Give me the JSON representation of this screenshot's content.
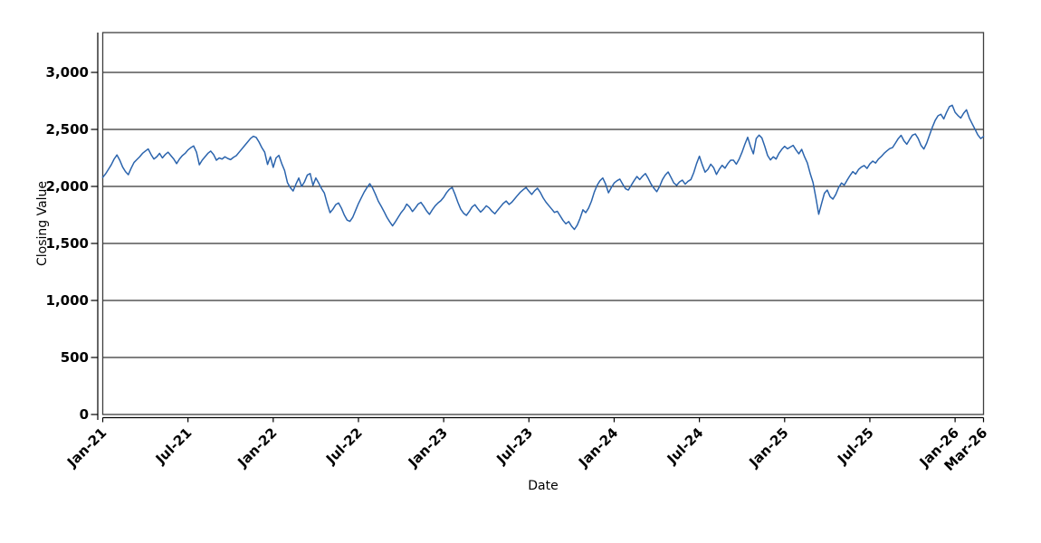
{
  "chart_data": {
    "type": "line",
    "title": "",
    "xlabel": "Date",
    "ylabel": "Closing Value",
    "grid": "horizontal-only",
    "legend": "none",
    "line_color": "#2b64ad",
    "axis_color": "#000000",
    "border_color": "#3f3f3f",
    "y_axis": {
      "ticks": [
        0,
        500,
        1000,
        1500,
        2000,
        2500,
        3000
      ],
      "tick_labels": [
        "0",
        "500",
        "1,000",
        "1,500",
        "2,000",
        "2,500",
        "3,000"
      ],
      "range": [
        0,
        3350
      ]
    },
    "x_axis": {
      "months_total": 62,
      "ticks": [
        {
          "label": "Jan-21",
          "month": 0
        },
        {
          "label": "Jul-21",
          "month": 6
        },
        {
          "label": "Jan-22",
          "month": 12
        },
        {
          "label": "Jul-22",
          "month": 18
        },
        {
          "label": "Jan-23",
          "month": 24
        },
        {
          "label": "Jul-23",
          "month": 30
        },
        {
          "label": "Jan-24",
          "month": 36
        },
        {
          "label": "Jul-24",
          "month": 42
        },
        {
          "label": "Jan-25",
          "month": 48
        },
        {
          "label": "Jul-25",
          "month": 54
        },
        {
          "label": "Jan-26",
          "month": 60
        },
        {
          "label": "Mar-26",
          "month": 62
        }
      ]
    },
    "series": [
      {
        "name": "Closing Value",
        "color": "#2b64ad",
        "x_start_month": 0,
        "x_step_month": 0.2,
        "x_unit": "months since Jan-2021",
        "values": [
          2080,
          2110,
          2150,
          2190,
          2240,
          2276,
          2230,
          2170,
          2130,
          2103,
          2160,
          2210,
          2235,
          2260,
          2290,
          2310,
          2329,
          2280,
          2240,
          2260,
          2290,
          2250,
          2280,
          2300,
          2270,
          2240,
          2200,
          2240,
          2270,
          2290,
          2320,
          2340,
          2355,
          2300,
          2190,
          2230,
          2260,
          2290,
          2310,
          2280,
          2230,
          2250,
          2240,
          2260,
          2245,
          2235,
          2255,
          2270,
          2300,
          2330,
          2360,
          2390,
          2420,
          2440,
          2430,
          2390,
          2340,
          2300,
          2193,
          2260,
          2167,
          2250,
          2272,
          2200,
          2140,
          2034,
          1990,
          1960,
          2020,
          2074,
          2000,
          2040,
          2100,
          2113,
          2010,
          2074,
          2030,
          1981,
          1942,
          1850,
          1770,
          1800,
          1840,
          1855,
          1810,
          1750,
          1705,
          1694,
          1730,
          1790,
          1850,
          1900,
          1950,
          1990,
          2024,
          1985,
          1930,
          1870,
          1826,
          1780,
          1730,
          1690,
          1654,
          1690,
          1730,
          1770,
          1800,
          1845,
          1820,
          1780,
          1810,
          1845,
          1860,
          1825,
          1785,
          1755,
          1795,
          1830,
          1855,
          1875,
          1905,
          1945,
          1975,
          1990,
          1930,
          1860,
          1800,
          1765,
          1746,
          1780,
          1820,
          1840,
          1805,
          1775,
          1800,
          1830,
          1812,
          1782,
          1760,
          1792,
          1822,
          1852,
          1872,
          1842,
          1862,
          1892,
          1922,
          1950,
          1972,
          1990,
          1958,
          1930,
          1962,
          1985,
          1948,
          1900,
          1862,
          1832,
          1802,
          1772,
          1782,
          1742,
          1702,
          1672,
          1692,
          1652,
          1623,
          1660,
          1720,
          1795,
          1770,
          1810,
          1870,
          1950,
          2010,
          2050,
          2074,
          2020,
          1944,
          1990,
          2030,
          2050,
          2064,
          2020,
          1980,
          1968,
          2010,
          2050,
          2087,
          2060,
          2090,
          2113,
          2070,
          2020,
          1984,
          1954,
          2000,
          2060,
          2100,
          2127,
          2080,
          2030,
          2010,
          2040,
          2055,
          2020,
          2045,
          2060,
          2120,
          2200,
          2265,
          2190,
          2125,
          2150,
          2195,
          2165,
          2105,
          2150,
          2185,
          2160,
          2200,
          2230,
          2230,
          2195,
          2240,
          2300,
          2370,
          2431,
          2350,
          2286,
          2420,
          2450,
          2425,
          2352,
          2272,
          2232,
          2260,
          2240,
          2290,
          2325,
          2352,
          2330,
          2345,
          2360,
          2320,
          2286,
          2325,
          2260,
          2206,
          2113,
          2034,
          1900,
          1756,
          1850,
          1940,
          1968,
          1910,
          1889,
          1930,
          1990,
          2030,
          2012,
          2055,
          2095,
          2130,
          2108,
          2148,
          2170,
          2183,
          2158,
          2198,
          2222,
          2205,
          2240,
          2262,
          2290,
          2312,
          2332,
          2341,
          2380,
          2420,
          2448,
          2400,
          2370,
          2412,
          2450,
          2460,
          2420,
          2360,
          2328,
          2380,
          2450,
          2520,
          2580,
          2620,
          2633,
          2592,
          2650,
          2700,
          2712,
          2650,
          2622,
          2600,
          2642,
          2672,
          2600,
          2550,
          2502,
          2452,
          2420,
          2438
        ]
      }
    ]
  }
}
